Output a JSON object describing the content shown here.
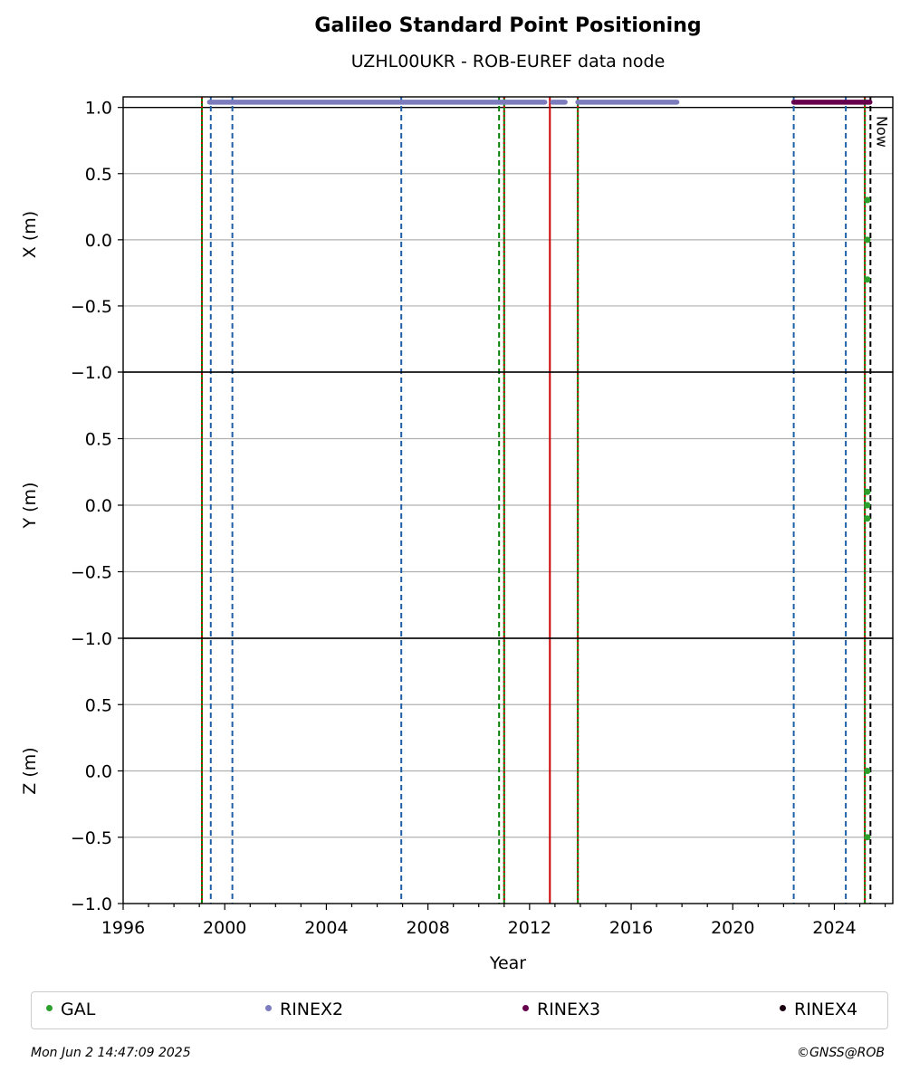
{
  "title": "Galileo Standard Point Positioning",
  "subtitle": "UZHL00UKR - ROB-EUREF data node",
  "footer": {
    "timestamp": "Mon Jun  2 14:47:09 2025",
    "credit": "©GNSS@ROB"
  },
  "chart_data": {
    "type": "scatter",
    "xlabel": "Year",
    "xlim": [
      1996,
      2026.3
    ],
    "x_ticks": [
      1996,
      2000,
      2004,
      2008,
      2012,
      2016,
      2020,
      2024
    ],
    "x_tick_labels": [
      "1996",
      "2000",
      "2004",
      "2008",
      "2012",
      "2016",
      "2020",
      "2024"
    ],
    "now_label": "Now",
    "now_x": 2025.42,
    "grid": true,
    "legend_placement": "bottom",
    "panels": [
      {
        "ylabel": "X (m)",
        "ylim": [
          -1.0,
          1.08
        ],
        "y_ticks": [
          1.0,
          0.5,
          0.0,
          -0.5,
          -1.0
        ],
        "y_tick_labels": [
          "1.0",
          "0.5",
          "0.0",
          "−0.5",
          "−1.0"
        ]
      },
      {
        "ylabel": "Y (m)",
        "ylim": [
          -1.0,
          1.0
        ],
        "y_ticks": [
          1.0,
          0.5,
          0.0,
          -0.5,
          -1.0
        ],
        "y_tick_labels": [
          "",
          "0.5",
          "0.0",
          "−0.5",
          "−1.0"
        ]
      },
      {
        "ylabel": "Z (m)",
        "ylim": [
          -1.0,
          1.0
        ],
        "y_ticks": [
          1.0,
          0.5,
          0.0,
          -0.5,
          -1.0
        ],
        "y_tick_labels": [
          "",
          "0.5",
          "0.0",
          "−0.5",
          "−1.0"
        ]
      }
    ],
    "vertical_lines": [
      {
        "x": 1999.1,
        "color": "#008000",
        "style": "solid"
      },
      {
        "x": 1999.1,
        "color": "#cc0000",
        "style": "dotted"
      },
      {
        "x": 1999.45,
        "color": "#1f5fa8",
        "style": "dashed"
      },
      {
        "x": 2000.3,
        "color": "#1f5fa8",
        "style": "dashed"
      },
      {
        "x": 2006.95,
        "color": "#1f5fa8",
        "style": "dashed"
      },
      {
        "x": 2010.8,
        "color": "#008000",
        "style": "dashed"
      },
      {
        "x": 2011.0,
        "color": "#008000",
        "style": "solid"
      },
      {
        "x": 2011.0,
        "color": "#cc0000",
        "style": "dotted"
      },
      {
        "x": 2012.8,
        "color": "#cc0000",
        "style": "solid"
      },
      {
        "x": 2013.9,
        "color": "#008000",
        "style": "solid"
      },
      {
        "x": 2013.9,
        "color": "#cc0000",
        "style": "dotted"
      },
      {
        "x": 2022.4,
        "color": "#1f5fa8",
        "style": "dashed"
      },
      {
        "x": 2024.45,
        "color": "#1f5fa8",
        "style": "dashed"
      },
      {
        "x": 2025.2,
        "color": "#008000",
        "style": "solid"
      },
      {
        "x": 2025.2,
        "color": "#cc0000",
        "style": "dotted"
      },
      {
        "x": 2025.42,
        "color": "#000000",
        "style": "dashed"
      }
    ],
    "series": [
      {
        "name": "GAL",
        "color": "#2ca02c",
        "points": [
          {
            "panel": 0,
            "x": 2025.3,
            "y": 0.3
          },
          {
            "panel": 0,
            "x": 2025.3,
            "y": 0.0
          },
          {
            "panel": 0,
            "x": 2025.3,
            "y": -0.3
          },
          {
            "panel": 1,
            "x": 2025.3,
            "y": 0.1
          },
          {
            "panel": 1,
            "x": 2025.3,
            "y": 0.0
          },
          {
            "panel": 1,
            "x": 2025.3,
            "y": -0.1
          },
          {
            "panel": 2,
            "x": 2025.3,
            "y": 0.0
          },
          {
            "panel": 2,
            "x": 2025.3,
            "y": -0.5
          }
        ]
      },
      {
        "name": "RINEX2",
        "color": "#7b7bbd",
        "y": 1.04,
        "ranges": [
          [
            1999.4,
            2012.6
          ],
          [
            2012.9,
            2013.4
          ],
          [
            2013.9,
            2017.8
          ]
        ]
      },
      {
        "name": "RINEX3",
        "color": "#66004d",
        "y": 1.04,
        "ranges": [
          [
            2022.4,
            2025.4
          ]
        ]
      },
      {
        "name": "RINEX4",
        "color": "#1a0010"
      }
    ]
  }
}
